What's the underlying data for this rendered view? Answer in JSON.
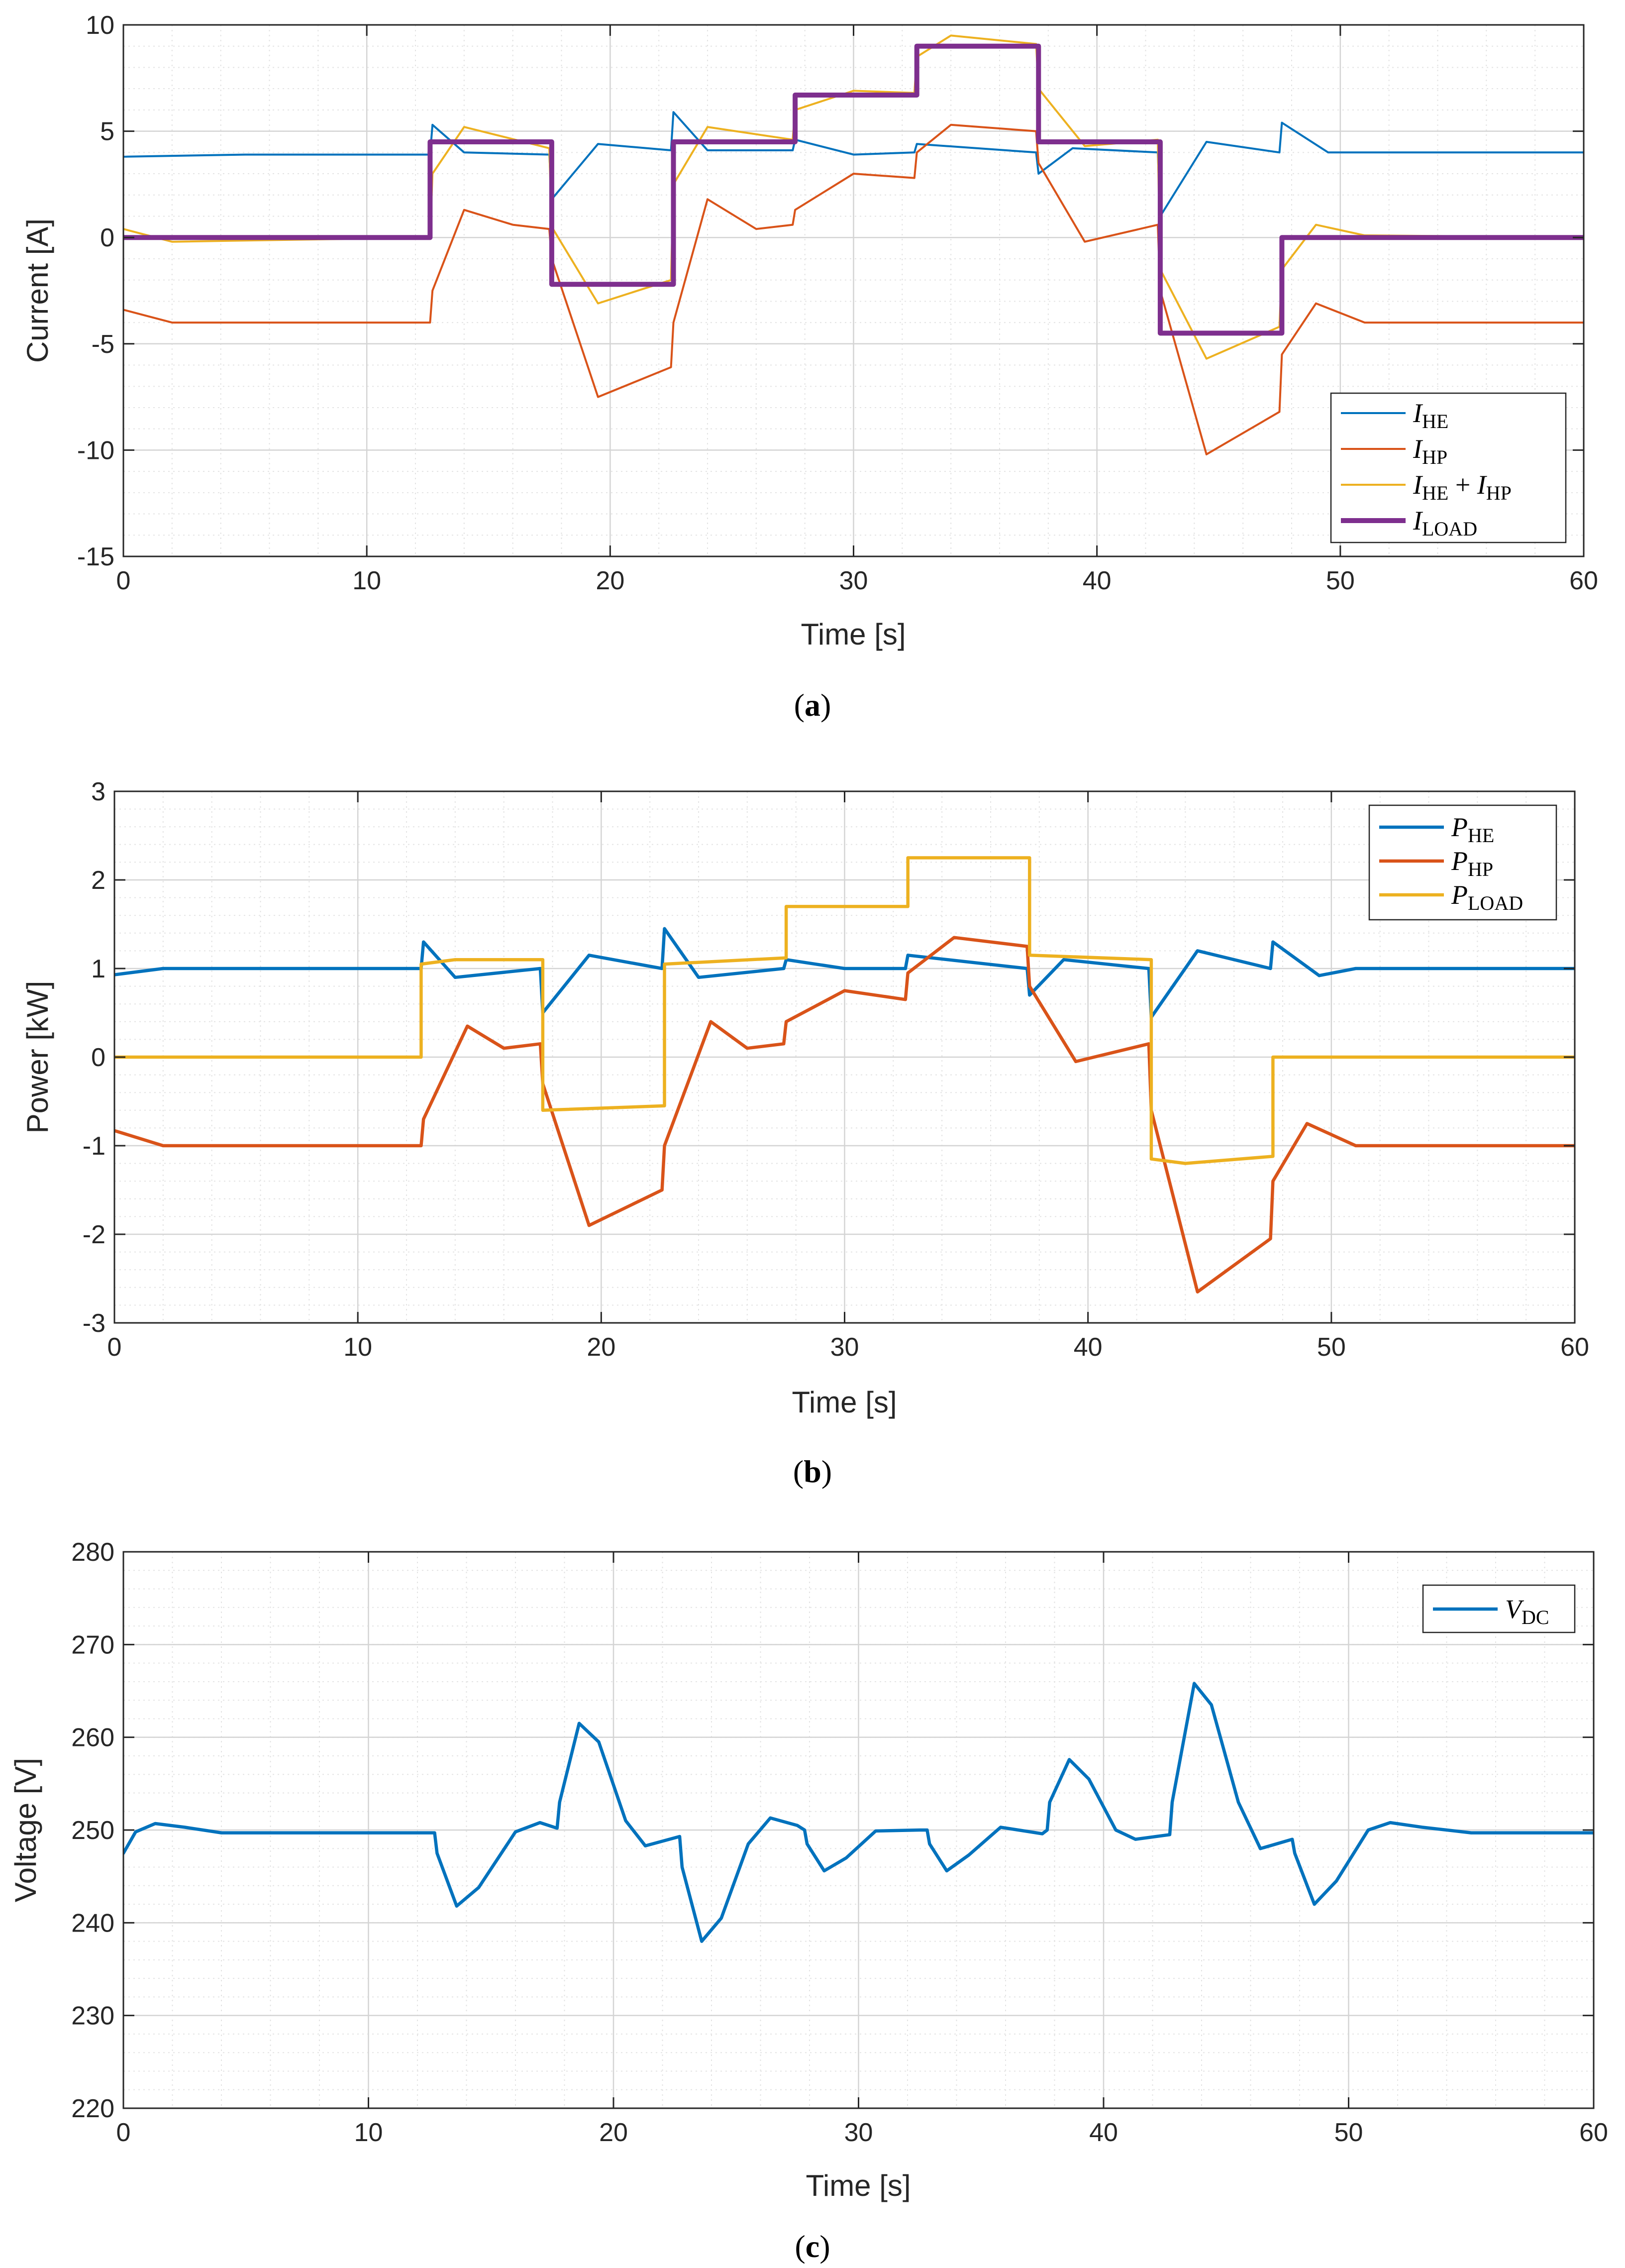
{
  "chart_data": [
    {
      "id": "a",
      "type": "line",
      "caption_letter": "a",
      "xlabel": "Time [s]",
      "ylabel": "Current [A]",
      "xlim": [
        0,
        60
      ],
      "ylim": [
        -15,
        10
      ],
      "xticks": [
        0,
        10,
        20,
        30,
        40,
        50,
        60
      ],
      "xtick_labels": [
        "0",
        "10",
        "20",
        "30",
        "40",
        "50",
        "60"
      ],
      "yticks": [
        -15,
        -10,
        -5,
        0,
        5,
        10
      ],
      "ytick_labels": [
        "-15",
        "-10",
        "-5",
        "0",
        "5",
        "10"
      ],
      "grid": true,
      "legend_position": "bottom-right",
      "series": [
        {
          "name": "I_HE",
          "label_main": "I",
          "label_sub": "HE",
          "color": "#0072BD",
          "width": "thin",
          "points": [
            [
              0,
              3.8
            ],
            [
              5,
              3.9
            ],
            [
              12.6,
              3.9
            ],
            [
              12.7,
              5.3
            ],
            [
              14,
              4.0
            ],
            [
              17.5,
              3.9
            ],
            [
              17.6,
              1.8
            ],
            [
              19.5,
              4.4
            ],
            [
              22.5,
              4.1
            ],
            [
              22.6,
              5.9
            ],
            [
              24,
              4.1
            ],
            [
              27.5,
              4.1
            ],
            [
              27.6,
              4.6
            ],
            [
              30,
              3.9
            ],
            [
              32.5,
              4.0
            ],
            [
              32.6,
              4.4
            ],
            [
              37.5,
              4.0
            ],
            [
              37.6,
              3.0
            ],
            [
              39,
              4.2
            ],
            [
              42.5,
              4.0
            ],
            [
              42.6,
              1.0
            ],
            [
              44.5,
              4.5
            ],
            [
              47.5,
              4.0
            ],
            [
              47.6,
              5.4
            ],
            [
              49.5,
              4.0
            ],
            [
              60,
              4.0
            ]
          ]
        },
        {
          "name": "I_HP",
          "label_main": "I",
          "label_sub": "HP",
          "color": "#D95319",
          "width": "thin",
          "points": [
            [
              0,
              -3.4
            ],
            [
              2,
              -4.0
            ],
            [
              12.6,
              -4.0
            ],
            [
              12.7,
              -2.5
            ],
            [
              14,
              1.3
            ],
            [
              16,
              0.6
            ],
            [
              17.5,
              0.4
            ],
            [
              17.6,
              -1.0
            ],
            [
              19.5,
              -7.5
            ],
            [
              22.5,
              -6.1
            ],
            [
              22.6,
              -4.0
            ],
            [
              24,
              1.8
            ],
            [
              26,
              0.4
            ],
            [
              27.5,
              0.6
            ],
            [
              27.6,
              1.3
            ],
            [
              30,
              3.0
            ],
            [
              32.5,
              2.8
            ],
            [
              32.6,
              4.0
            ],
            [
              34,
              5.3
            ],
            [
              37.5,
              5.0
            ],
            [
              37.6,
              3.5
            ],
            [
              39.5,
              -0.2
            ],
            [
              42.5,
              0.6
            ],
            [
              42.6,
              -2.5
            ],
            [
              44.5,
              -10.2
            ],
            [
              47.5,
              -8.2
            ],
            [
              47.6,
              -5.5
            ],
            [
              49,
              -3.1
            ],
            [
              51,
              -4.0
            ],
            [
              60,
              -4.0
            ]
          ]
        },
        {
          "name": "I_HE + I_HP",
          "label_main": "I",
          "label_sub": "HE",
          "label_mid": " + I",
          "label_sub2": "HP",
          "color": "#EDB120",
          "width": "thin",
          "points": [
            [
              0,
              0.4
            ],
            [
              2,
              -0.2
            ],
            [
              12.6,
              0.0
            ],
            [
              12.7,
              3.0
            ],
            [
              14,
              5.2
            ],
            [
              17.5,
              4.2
            ],
            [
              17.6,
              0.5
            ],
            [
              19.5,
              -3.1
            ],
            [
              22.5,
              -2.0
            ],
            [
              22.6,
              2.5
            ],
            [
              24,
              5.2
            ],
            [
              27.5,
              4.6
            ],
            [
              27.6,
              6.0
            ],
            [
              30,
              6.9
            ],
            [
              32.5,
              6.8
            ],
            [
              32.6,
              8.5
            ],
            [
              34,
              9.5
            ],
            [
              37.5,
              9.1
            ],
            [
              37.6,
              7.0
            ],
            [
              39.5,
              4.3
            ],
            [
              42.5,
              4.6
            ],
            [
              42.6,
              -1.5
            ],
            [
              44.5,
              -5.7
            ],
            [
              47.5,
              -4.2
            ],
            [
              47.6,
              -1.5
            ],
            [
              49,
              0.6
            ],
            [
              51,
              0.1
            ],
            [
              60,
              0.0
            ]
          ]
        },
        {
          "name": "I_LOAD",
          "label_main": "I",
          "label_sub": "LOAD",
          "color": "#7E2F8E",
          "width": "thick",
          "points": [
            [
              0,
              0
            ],
            [
              12.6,
              0
            ],
            [
              12.6,
              4.5
            ],
            [
              17.6,
              4.5
            ],
            [
              17.6,
              -2.2
            ],
            [
              22.6,
              -2.2
            ],
            [
              22.6,
              4.5
            ],
            [
              27.6,
              4.5
            ],
            [
              27.6,
              6.7
            ],
            [
              32.6,
              6.7
            ],
            [
              32.6,
              9.0
            ],
            [
              37.6,
              9.0
            ],
            [
              37.6,
              4.5
            ],
            [
              42.6,
              4.5
            ],
            [
              42.6,
              -4.5
            ],
            [
              47.6,
              -4.5
            ],
            [
              47.6,
              0
            ],
            [
              60,
              0
            ]
          ]
        }
      ]
    },
    {
      "id": "b",
      "type": "line",
      "caption_letter": "b",
      "xlabel": "Time [s]",
      "ylabel": "Power [kW]",
      "xlim": [
        0,
        60
      ],
      "ylim": [
        -3,
        3
      ],
      "xticks": [
        0,
        10,
        20,
        30,
        40,
        50,
        60
      ],
      "xtick_labels": [
        "0",
        "10",
        "20",
        "30",
        "40",
        "50",
        "60"
      ],
      "yticks": [
        -3,
        -2,
        -1,
        0,
        1,
        2,
        3
      ],
      "ytick_labels": [
        "-3",
        "-2",
        "-1",
        "0",
        "1",
        "2",
        "3"
      ],
      "grid": true,
      "legend_position": "top-right",
      "series": [
        {
          "name": "P_HE",
          "label_main": "P",
          "label_sub": "HE",
          "color": "#0072BD",
          "width": "medium",
          "points": [
            [
              0,
              0.93
            ],
            [
              2,
              1.0
            ],
            [
              12.6,
              1.0
            ],
            [
              12.7,
              1.3
            ],
            [
              14,
              0.9
            ],
            [
              17.5,
              1.0
            ],
            [
              17.6,
              0.5
            ],
            [
              19.5,
              1.15
            ],
            [
              22.5,
              1.0
            ],
            [
              22.6,
              1.45
            ],
            [
              24,
              0.9
            ],
            [
              27.5,
              1.0
            ],
            [
              27.6,
              1.1
            ],
            [
              30,
              1.0
            ],
            [
              32.5,
              1.0
            ],
            [
              32.6,
              1.15
            ],
            [
              37.5,
              1.0
            ],
            [
              37.6,
              0.7
            ],
            [
              39,
              1.1
            ],
            [
              42.5,
              1.0
            ],
            [
              42.6,
              0.45
            ],
            [
              44.5,
              1.2
            ],
            [
              47.5,
              1.0
            ],
            [
              47.6,
              1.3
            ],
            [
              49.5,
              0.92
            ],
            [
              51,
              1.0
            ],
            [
              60,
              1.0
            ]
          ]
        },
        {
          "name": "P_HP",
          "label_main": "P",
          "label_sub": "HP",
          "color": "#D95319",
          "width": "medium",
          "points": [
            [
              0,
              -0.83
            ],
            [
              2,
              -1.0
            ],
            [
              12.6,
              -1.0
            ],
            [
              12.7,
              -0.7
            ],
            [
              14.5,
              0.35
            ],
            [
              16,
              0.1
            ],
            [
              17.5,
              0.15
            ],
            [
              17.6,
              -0.3
            ],
            [
              19.5,
              -1.9
            ],
            [
              22.5,
              -1.5
            ],
            [
              22.6,
              -1.0
            ],
            [
              24.5,
              0.4
            ],
            [
              26,
              0.1
            ],
            [
              27.5,
              0.15
            ],
            [
              27.6,
              0.4
            ],
            [
              30,
              0.75
            ],
            [
              32.5,
              0.65
            ],
            [
              32.6,
              0.95
            ],
            [
              34.5,
              1.35
            ],
            [
              37.5,
              1.25
            ],
            [
              37.6,
              0.8
            ],
            [
              39.5,
              -0.05
            ],
            [
              42.5,
              0.15
            ],
            [
              42.6,
              -0.6
            ],
            [
              44.5,
              -2.65
            ],
            [
              47.5,
              -2.05
            ],
            [
              47.6,
              -1.4
            ],
            [
              49,
              -0.75
            ],
            [
              51,
              -1.0
            ],
            [
              60,
              -1.0
            ]
          ]
        },
        {
          "name": "P_LOAD",
          "label_main": "P",
          "label_sub": "LOAD",
          "color": "#EDB120",
          "width": "medium",
          "points": [
            [
              0,
              0
            ],
            [
              12.6,
              0
            ],
            [
              12.6,
              1.05
            ],
            [
              14,
              1.1
            ],
            [
              17.6,
              1.1
            ],
            [
              17.6,
              -0.6
            ],
            [
              22.6,
              -0.55
            ],
            [
              22.6,
              1.05
            ],
            [
              27.6,
              1.12
            ],
            [
              27.6,
              1.7
            ],
            [
              32.6,
              1.7
            ],
            [
              32.6,
              2.25
            ],
            [
              37.6,
              2.25
            ],
            [
              37.6,
              1.15
            ],
            [
              42.6,
              1.1
            ],
            [
              42.6,
              -1.15
            ],
            [
              44,
              -1.2
            ],
            [
              47.6,
              -1.12
            ],
            [
              47.6,
              0
            ],
            [
              60,
              0
            ]
          ]
        }
      ]
    },
    {
      "id": "c",
      "type": "line",
      "caption_letter": "c",
      "xlabel": "Time [s]",
      "ylabel": "Voltage [V]",
      "xlim": [
        0,
        60
      ],
      "ylim": [
        220,
        280
      ],
      "xticks": [
        0,
        10,
        20,
        30,
        40,
        50,
        60
      ],
      "xtick_labels": [
        "0",
        "10",
        "20",
        "30",
        "40",
        "50",
        "60"
      ],
      "yticks": [
        220,
        230,
        240,
        250,
        260,
        270,
        280
      ],
      "ytick_labels": [
        "220",
        "230",
        "240",
        "250",
        "260",
        "270",
        "280"
      ],
      "grid": true,
      "legend_position": "top-right",
      "series": [
        {
          "name": "V_DC",
          "label_main": "V",
          "label_sub": "DC",
          "color": "#0072BD",
          "width": "medium",
          "points": [
            [
              0,
              247.5
            ],
            [
              0.5,
              249.8
            ],
            [
              1.3,
              250.7
            ],
            [
              2.5,
              250.3
            ],
            [
              4,
              249.7
            ],
            [
              8,
              249.7
            ],
            [
              12.7,
              249.7
            ],
            [
              12.8,
              247.5
            ],
            [
              13.6,
              241.8
            ],
            [
              14.5,
              243.8
            ],
            [
              16,
              249.8
            ],
            [
              17,
              250.8
            ],
            [
              17.7,
              250.2
            ],
            [
              17.8,
              253
            ],
            [
              18.6,
              261.5
            ],
            [
              19.4,
              259.5
            ],
            [
              20.5,
              251
            ],
            [
              21.3,
              248.3
            ],
            [
              22.7,
              249.3
            ],
            [
              22.8,
              246
            ],
            [
              23.6,
              238
            ],
            [
              24.4,
              240.5
            ],
            [
              25.5,
              248.5
            ],
            [
              26.4,
              251.3
            ],
            [
              27.5,
              250.5
            ],
            [
              27.8,
              250
            ],
            [
              27.9,
              248.5
            ],
            [
              28.6,
              245.6
            ],
            [
              29.5,
              247
            ],
            [
              30.7,
              249.9
            ],
            [
              32.5,
              250
            ],
            [
              32.8,
              250
            ],
            [
              32.9,
              248.5
            ],
            [
              33.6,
              245.6
            ],
            [
              34.5,
              247.3
            ],
            [
              35.8,
              250.3
            ],
            [
              37.5,
              249.6
            ],
            [
              37.7,
              250
            ],
            [
              37.8,
              253
            ],
            [
              38.6,
              257.6
            ],
            [
              39.4,
              255.5
            ],
            [
              40.5,
              250
            ],
            [
              41.3,
              249
            ],
            [
              42.7,
              249.5
            ],
            [
              42.8,
              253
            ],
            [
              43.7,
              265.8
            ],
            [
              44.4,
              263.5
            ],
            [
              45.5,
              253
            ],
            [
              46.4,
              248
            ],
            [
              47.7,
              249
            ],
            [
              47.8,
              247.5
            ],
            [
              48.6,
              242
            ],
            [
              49.5,
              244.5
            ],
            [
              50.8,
              250
            ],
            [
              51.7,
              250.8
            ],
            [
              53,
              250.3
            ],
            [
              55,
              249.7
            ],
            [
              60,
              249.7
            ]
          ]
        }
      ]
    }
  ]
}
